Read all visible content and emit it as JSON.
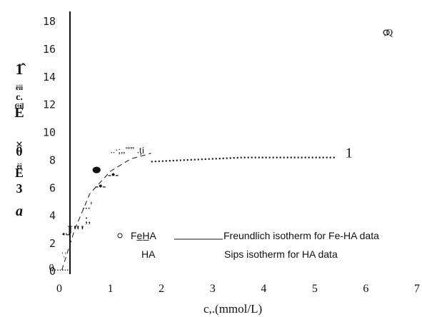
{
  "chart_data": {
    "type": "scatter",
    "title": "",
    "xlabel": "c,.(mmol/L)",
    "ylabel_glyphs": [
      "1̂",
      "ëii",
      "c.",
      "Cil",
      "Ë",
      "×",
      "θ",
      "ëi",
      "E",
      "3",
      "a"
    ],
    "xlim": [
      0,
      7
    ],
    "ylim": [
      0,
      18
    ],
    "x_ticks": [
      "0",
      "1",
      "2",
      "3",
      "4",
      "5",
      "6",
      "7"
    ],
    "y_ticks": [
      "0",
      "2",
      "4",
      "6",
      "8",
      "10",
      "12",
      "14",
      "16",
      "18"
    ],
    "series": [
      {
        "name": "Fe-HA",
        "marker": "filled-circle",
        "points": [
          [
            0.73,
            7.3
          ]
        ]
      },
      {
        "name": "HA",
        "marker": "open-circle",
        "points": [
          [
            6.4,
            17.2
          ]
        ]
      }
    ],
    "fits": [
      {
        "name": "Freundlich isotherm for Fe-HA data",
        "style": "solid",
        "x": [
          0.05,
          0.3,
          0.6,
          1.0,
          1.4,
          1.8
        ],
        "y": [
          0.1,
          3.0,
          5.6,
          7.2,
          8.1,
          8.5
        ]
      },
      {
        "name": "Sips isotherm for HA data",
        "style": "dotted",
        "x": [
          1.8,
          2.4,
          3.0,
          3.6,
          4.2,
          4.8,
          5.4
        ],
        "y": [
          7.9,
          8.0,
          8.1,
          8.2,
          8.2,
          8.2,
          8.2
        ]
      }
    ],
    "annotations": [
      {
        "text": "1",
        "x": 5.6,
        "y": 8.2
      },
      {
        "text": ".J\"'",
        "x": 0.05,
        "y": 2.6
      },
      {
        "text": "'.'",
        "x": 0.05,
        "y": 1.0
      },
      {
        "text": "0......",
        "x": -0.2,
        "y": 0.05
      },
      {
        "text": "...'",
        "x": 0.45,
        "y": 4.5
      },
      {
        "text": ";,",
        "x": 0.5,
        "y": 3.5
      },
      {
        "text": "..·;,,\"'\" .ţi",
        "x": 1.0,
        "y": 8.5
      },
      {
        "text": "-•-",
        "x": 0.95,
        "y": 6.7
      },
      {
        "text": "-•-",
        "x": 0.7,
        "y": 5.9
      },
      {
        "text": ",Q",
        "x": 6.35,
        "y": 17.0
      }
    ],
    "legend": {
      "placement": "lower-center",
      "entries": [
        {
          "marker_label": "Fe̲H̲A",
          "line_label": "Freundlich isotherm for Fe-HA data"
        },
        {
          "marker_label": "HA",
          "line_label": "Sips isotherm for HA data"
        }
      ]
    },
    "grid": false
  },
  "colors": {
    "axis": "#111111",
    "marks": "#111111"
  }
}
